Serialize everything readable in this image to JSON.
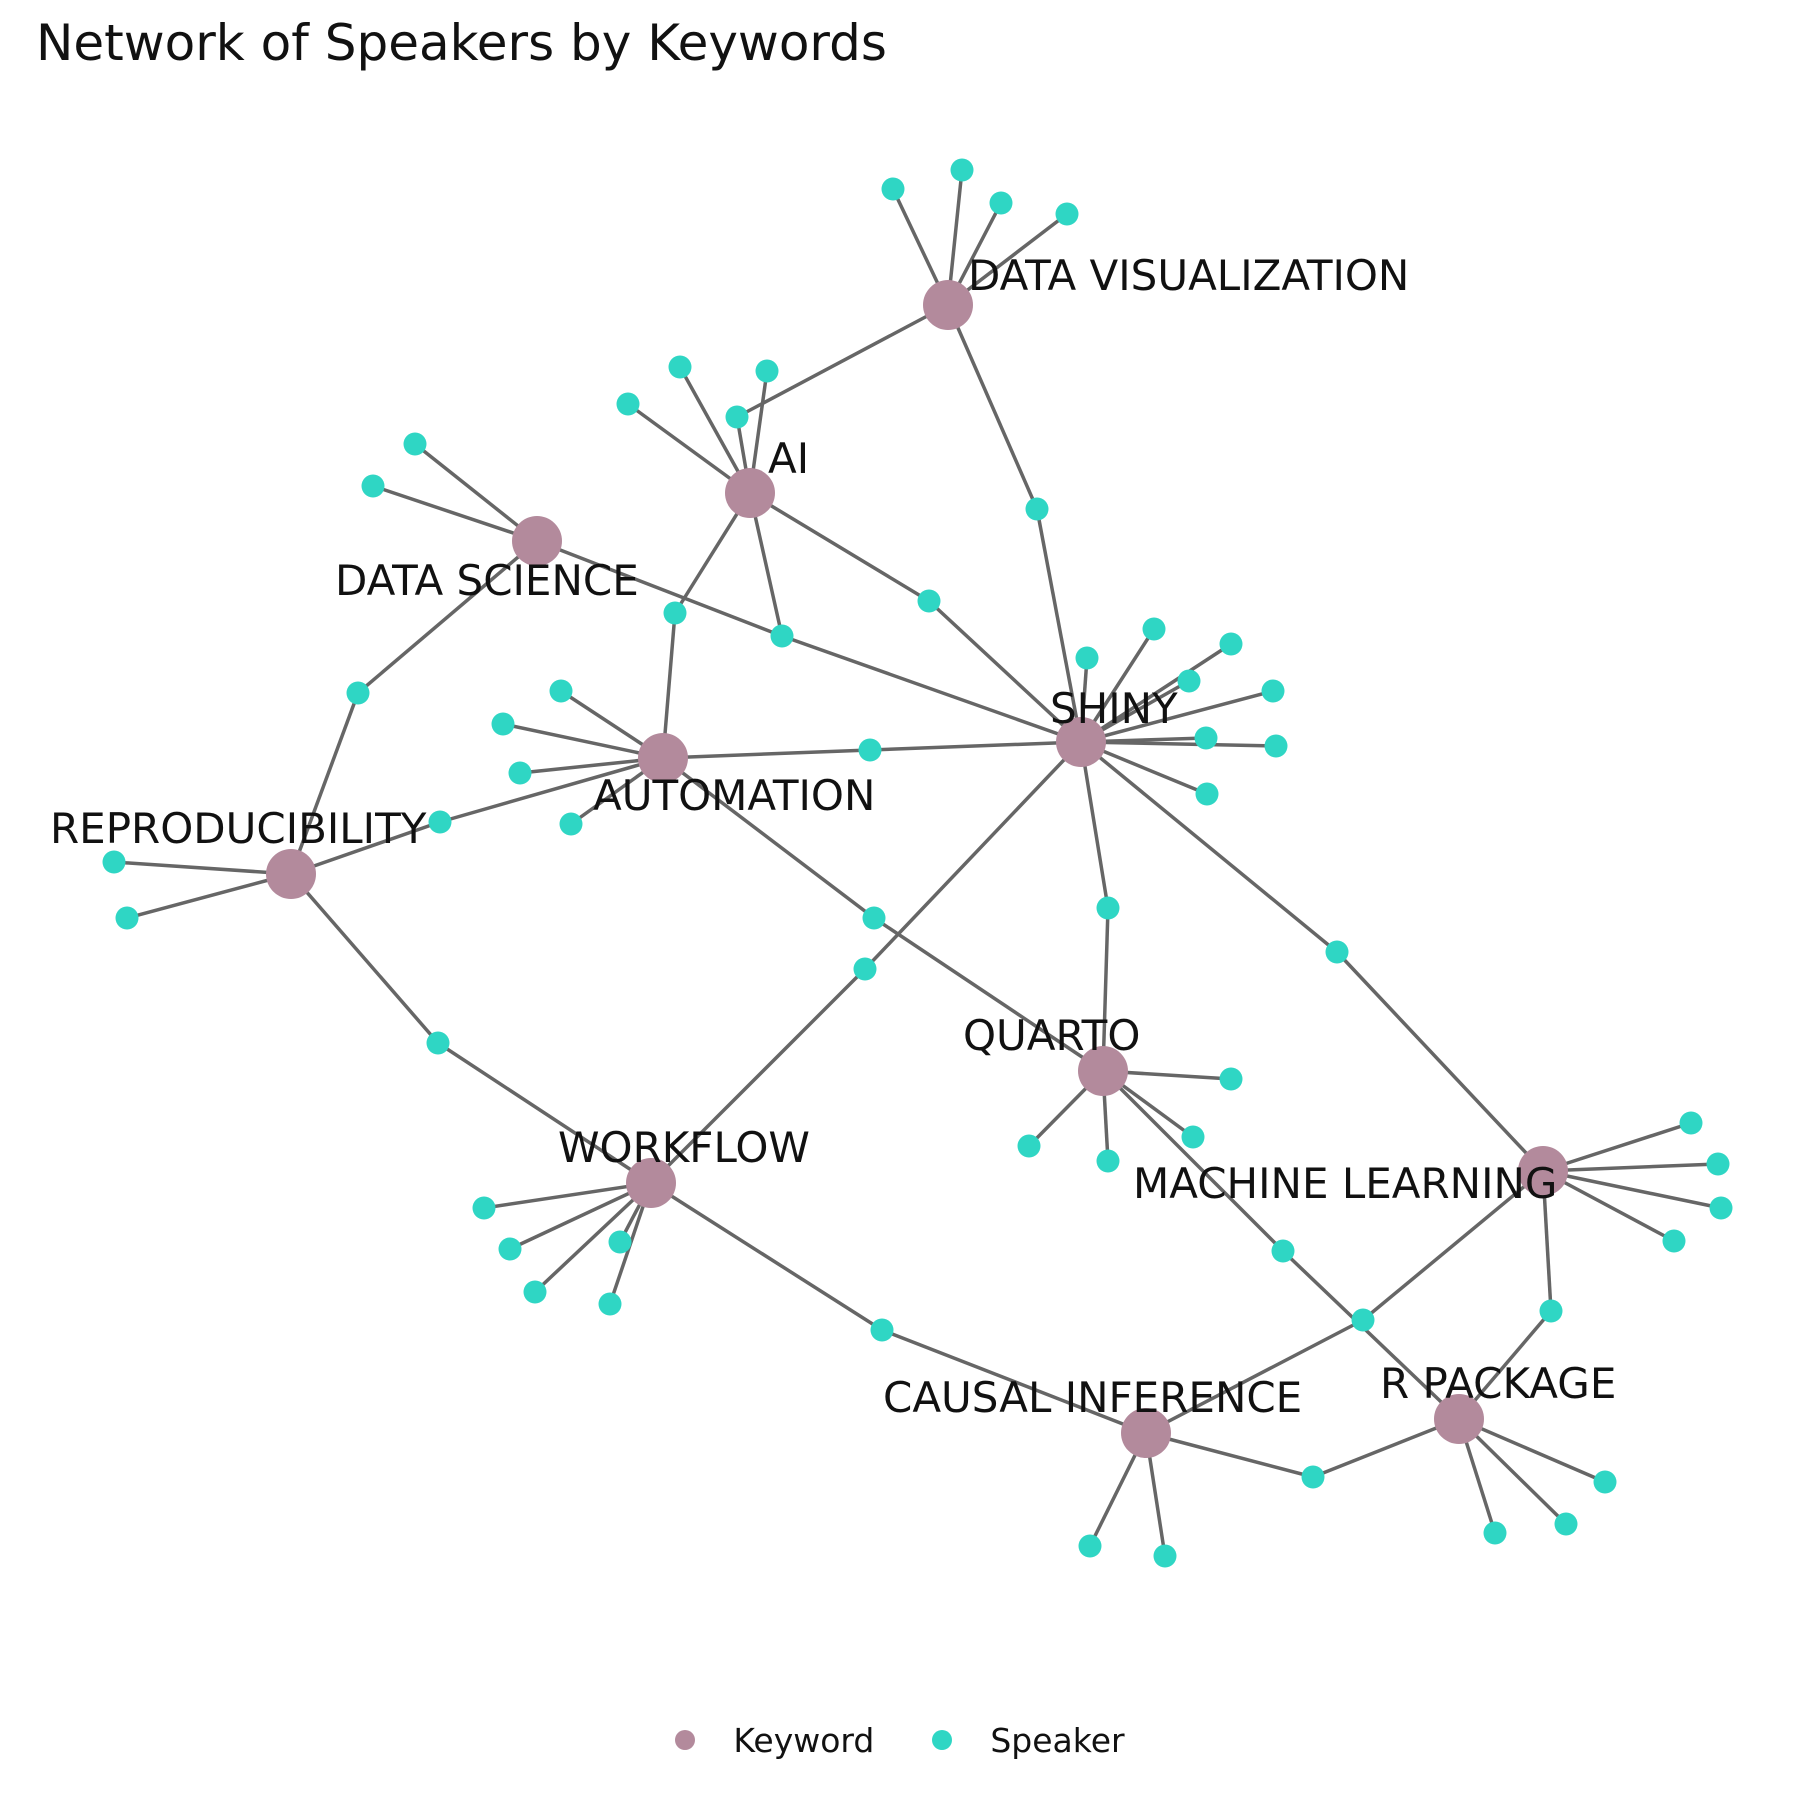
{
  "title": "Network of Speakers by Keywords",
  "colors": {
    "keyword": "#b38a9c",
    "speaker": "#2fd6c4",
    "edge": "#666666"
  },
  "legend": [
    {
      "id": "keyword",
      "label": "Keyword"
    },
    {
      "id": "speaker",
      "label": "Speaker"
    }
  ],
  "keywords": [
    {
      "id": "DV",
      "label": "DATA VISUALIZATION"
    },
    {
      "id": "AI",
      "label": "AI"
    },
    {
      "id": "DS",
      "label": "DATA SCIENCE"
    },
    {
      "id": "AU",
      "label": "AUTOMATION"
    },
    {
      "id": "SH",
      "label": "SHINY"
    },
    {
      "id": "RE",
      "label": "REPRODUCIBILITY"
    },
    {
      "id": "QU",
      "label": "QUARTO"
    },
    {
      "id": "WF",
      "label": "WORKFLOW"
    },
    {
      "id": "ML",
      "label": "MACHINE LEARNING"
    },
    {
      "id": "CI",
      "label": "CAUSAL INFERENCE"
    },
    {
      "id": "RP",
      "label": "R PACKAGE"
    }
  ],
  "speakers": [
    {
      "id": "dv1",
      "keywords": [
        "DV"
      ]
    },
    {
      "id": "dv2",
      "keywords": [
        "DV"
      ]
    },
    {
      "id": "dv3",
      "keywords": [
        "DV"
      ]
    },
    {
      "id": "dv4",
      "keywords": [
        "DV"
      ]
    },
    {
      "id": "dv_sh",
      "keywords": [
        "DV",
        "SH"
      ]
    },
    {
      "id": "dv_ai",
      "keywords": [
        "DV",
        "AI"
      ]
    },
    {
      "id": "ai1",
      "keywords": [
        "AI"
      ]
    },
    {
      "id": "ai2",
      "keywords": [
        "AI"
      ]
    },
    {
      "id": "ai3",
      "keywords": [
        "AI"
      ]
    },
    {
      "id": "ai_sh",
      "keywords": [
        "AI",
        "SH"
      ]
    },
    {
      "id": "ai_au",
      "keywords": [
        "AI",
        "AU"
      ]
    },
    {
      "id": "ai_ds_sh",
      "keywords": [
        "AI",
        "DS",
        "SH"
      ]
    },
    {
      "id": "ds1",
      "keywords": [
        "DS"
      ]
    },
    {
      "id": "ds2",
      "keywords": [
        "DS"
      ]
    },
    {
      "id": "ds_re",
      "keywords": [
        "DS",
        "RE"
      ]
    },
    {
      "id": "au1",
      "keywords": [
        "AU"
      ]
    },
    {
      "id": "au2",
      "keywords": [
        "AU"
      ]
    },
    {
      "id": "au3",
      "keywords": [
        "AU"
      ]
    },
    {
      "id": "au4",
      "keywords": [
        "AU"
      ]
    },
    {
      "id": "au_sh",
      "keywords": [
        "AU",
        "SH"
      ]
    },
    {
      "id": "au_re",
      "keywords": [
        "AU",
        "RE"
      ]
    },
    {
      "id": "au_qu",
      "keywords": [
        "AU",
        "QU"
      ]
    },
    {
      "id": "sh1",
      "keywords": [
        "SH"
      ]
    },
    {
      "id": "sh2",
      "keywords": [
        "SH"
      ]
    },
    {
      "id": "sh3",
      "keywords": [
        "SH"
      ]
    },
    {
      "id": "sh4",
      "keywords": [
        "SH"
      ]
    },
    {
      "id": "sh5",
      "keywords": [
        "SH"
      ]
    },
    {
      "id": "sh6",
      "keywords": [
        "SH"
      ]
    },
    {
      "id": "sh7",
      "keywords": [
        "SH"
      ]
    },
    {
      "id": "sh8",
      "keywords": [
        "SH"
      ]
    },
    {
      "id": "sh_qu",
      "keywords": [
        "SH",
        "QU"
      ]
    },
    {
      "id": "sh_ml",
      "keywords": [
        "SH",
        "ML"
      ]
    },
    {
      "id": "sh_wf",
      "keywords": [
        "SH",
        "WF"
      ]
    },
    {
      "id": "re1",
      "keywords": [
        "RE"
      ]
    },
    {
      "id": "re2",
      "keywords": [
        "RE"
      ]
    },
    {
      "id": "re_wf",
      "keywords": [
        "RE",
        "WF"
      ]
    },
    {
      "id": "qu1",
      "keywords": [
        "QU"
      ]
    },
    {
      "id": "qu2",
      "keywords": [
        "QU"
      ]
    },
    {
      "id": "qu3",
      "keywords": [
        "QU"
      ]
    },
    {
      "id": "qu4",
      "keywords": [
        "QU"
      ]
    },
    {
      "id": "qu_rp",
      "keywords": [
        "QU",
        "RP"
      ]
    },
    {
      "id": "wf1",
      "keywords": [
        "WF"
      ]
    },
    {
      "id": "wf2",
      "keywords": [
        "WF"
      ]
    },
    {
      "id": "wf3",
      "keywords": [
        "WF"
      ]
    },
    {
      "id": "wf4",
      "keywords": [
        "WF"
      ]
    },
    {
      "id": "wf5",
      "keywords": [
        "WF"
      ]
    },
    {
      "id": "wf_ci",
      "keywords": [
        "WF",
        "CI"
      ]
    },
    {
      "id": "ml1",
      "keywords": [
        "ML"
      ]
    },
    {
      "id": "ml2",
      "keywords": [
        "ML"
      ]
    },
    {
      "id": "ml3",
      "keywords": [
        "ML"
      ]
    },
    {
      "id": "ml4",
      "keywords": [
        "ML"
      ]
    },
    {
      "id": "ml_ci",
      "keywords": [
        "ML",
        "CI"
      ]
    },
    {
      "id": "ml_rp",
      "keywords": [
        "ML",
        "RP"
      ]
    },
    {
      "id": "ci1",
      "keywords": [
        "CI"
      ]
    },
    {
      "id": "ci2",
      "keywords": [
        "CI"
      ]
    },
    {
      "id": "ci_rp",
      "keywords": [
        "CI",
        "RP"
      ]
    },
    {
      "id": "rp1",
      "keywords": [
        "RP"
      ]
    },
    {
      "id": "rp2",
      "keywords": [
        "RP"
      ]
    },
    {
      "id": "rp3",
      "keywords": [
        "RP"
      ]
    }
  ]
}
